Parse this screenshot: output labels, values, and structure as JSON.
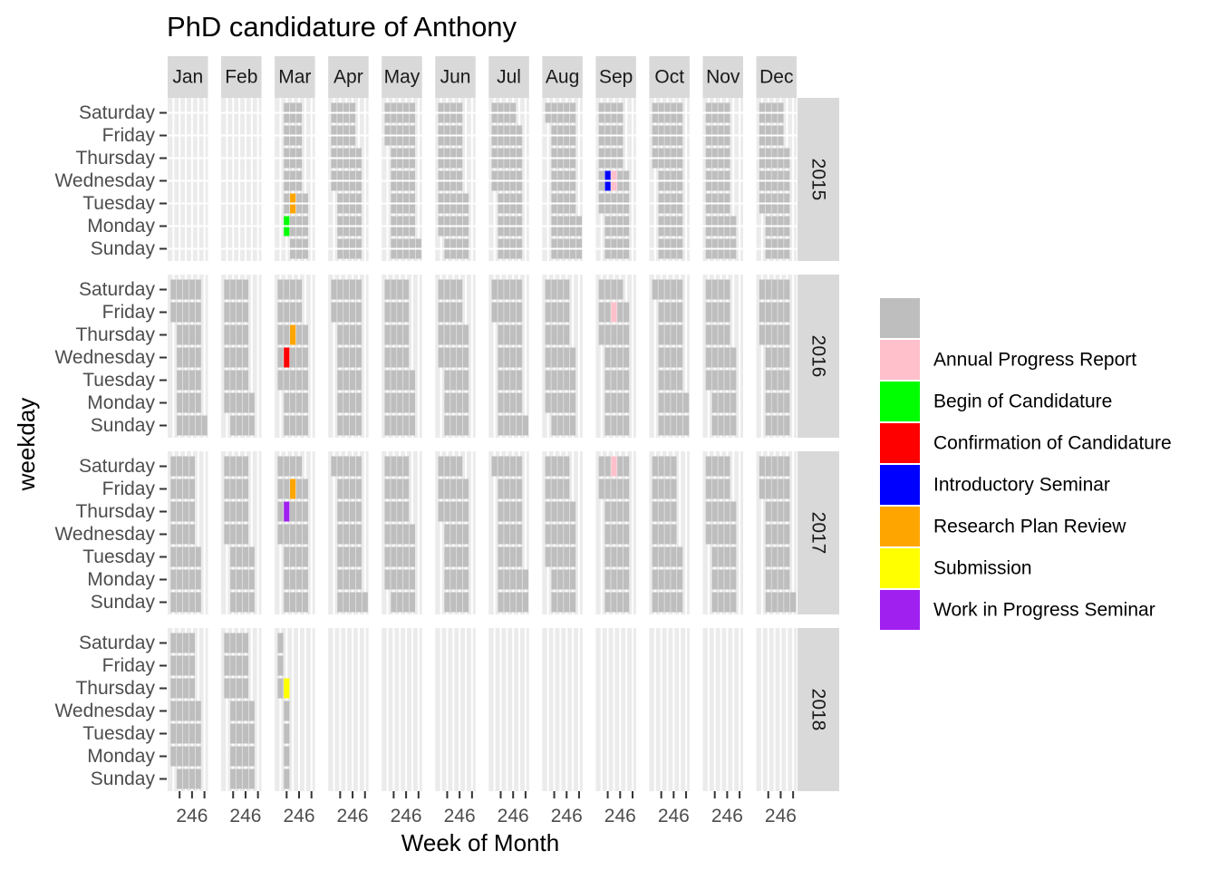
{
  "chart_data": {
    "type": "heatmap",
    "title": "PhD candidature of Anthony",
    "xlabel": "Week of Month",
    "ylabel": "weekday",
    "months": [
      "Jan",
      "Feb",
      "Mar",
      "Apr",
      "May",
      "Jun",
      "Jul",
      "Aug",
      "Sep",
      "Oct",
      "Nov",
      "Dec"
    ],
    "years": [
      "2015",
      "2016",
      "2017",
      "2018"
    ],
    "weekdays_top_to_bottom": [
      "Saturday",
      "Friday",
      "Thursday",
      "Wednesday",
      "Tuesday",
      "Monday",
      "Sunday"
    ],
    "x_tick_labels": [
      "2",
      "4",
      "6"
    ],
    "x_range": [
      0.5,
      6.5
    ],
    "legend": {
      "position": "right",
      "entries": [
        {
          "label": "",
          "color": "#BEBEBE"
        },
        {
          "label": "Annual Progress Report",
          "color": "#FFC0CB"
        },
        {
          "label": "Begin of Candidature",
          "color": "#00FF00"
        },
        {
          "label": "Confirmation of Candidature",
          "color": "#FF0000"
        },
        {
          "label": "Introductory Seminar",
          "color": "#0000FF"
        },
        {
          "label": "Research Plan Review",
          "color": "#FFA500"
        },
        {
          "label": "Submission",
          "color": "#FFFF00"
        },
        {
          "label": "Work in Progress Seminar",
          "color": "#A020F0"
        }
      ]
    },
    "date_range": [
      "2015-03-09",
      "2018-03-08"
    ],
    "events": [
      {
        "date": "2015-03-09",
        "label": "Begin of Candidature"
      },
      {
        "date": "2015-03-17",
        "label": "Research Plan Review"
      },
      {
        "date": "2015-09-09",
        "label": "Introductory Seminar"
      },
      {
        "date": "2015-09-16",
        "label": "Annual Progress Report"
      },
      {
        "date": "2016-03-09",
        "label": "Confirmation of Candidature"
      },
      {
        "date": "2016-03-17",
        "label": "Research Plan Review"
      },
      {
        "date": "2016-09-16",
        "label": "Annual Progress Report"
      },
      {
        "date": "2017-03-09",
        "label": "Work in Progress Seminar"
      },
      {
        "date": "2017-03-17",
        "label": "Research Plan Review"
      },
      {
        "date": "2017-09-16",
        "label": "Annual Progress Report"
      },
      {
        "date": "2018-03-08",
        "label": "Submission"
      }
    ]
  }
}
